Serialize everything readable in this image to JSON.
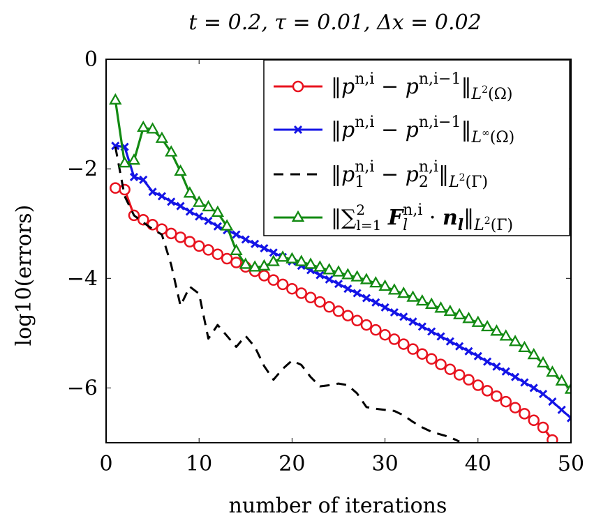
{
  "chart_data": {
    "type": "line",
    "title": "t = 0.2, τ = 0.01, Δx = 0.02",
    "xlabel": "number of iterations",
    "ylabel": "log10(errors)",
    "xlim": [
      0,
      50
    ],
    "ylim": [
      -7,
      0
    ],
    "xticks": [
      "0",
      "10",
      "20",
      "30",
      "40",
      "50"
    ],
    "xtick_values": [
      0,
      10,
      20,
      30,
      40,
      50
    ],
    "yticks": [
      "0",
      "−2",
      "−4",
      "−6"
    ],
    "ytick_values": [
      0,
      -2,
      -4,
      -6
    ],
    "grid": false,
    "legend_position": "top-right",
    "series": [
      {
        "name": "‖p^{n,i} − p^{n,i−1}‖_{L²(Ω)}",
        "color": "#e8131f",
        "marker": "circle",
        "dash": "solid",
        "x": [
          1,
          2,
          3,
          4,
          5,
          6,
          7,
          8,
          9,
          10,
          11,
          12,
          13,
          14,
          15,
          16,
          17,
          18,
          19,
          20,
          21,
          22,
          23,
          24,
          25,
          26,
          27,
          28,
          29,
          30,
          31,
          32,
          33,
          34,
          35,
          36,
          37,
          38,
          39,
          40,
          41,
          42,
          43,
          44,
          45,
          46,
          47,
          48
        ],
        "y": [
          -2.35,
          -2.38,
          -2.85,
          -2.93,
          -3.02,
          -3.1,
          -3.18,
          -3.25,
          -3.33,
          -3.41,
          -3.48,
          -3.56,
          -3.64,
          -3.71,
          -3.79,
          -3.87,
          -3.95,
          -4.03,
          -4.11,
          -4.19,
          -4.27,
          -4.35,
          -4.43,
          -4.52,
          -4.6,
          -4.68,
          -4.77,
          -4.85,
          -4.94,
          -5.03,
          -5.11,
          -5.2,
          -5.29,
          -5.38,
          -5.47,
          -5.57,
          -5.66,
          -5.76,
          -5.85,
          -5.95,
          -6.05,
          -6.15,
          -6.25,
          -6.36,
          -6.47,
          -6.59,
          -6.72,
          -6.95
        ]
      },
      {
        "name": "‖p^{n,i} − p^{n,i−1}‖_{L^∞(Ω)}",
        "color": "#1414e6",
        "marker": "cross",
        "dash": "solid",
        "x": [
          1,
          2,
          3,
          4,
          5,
          6,
          7,
          8,
          9,
          10,
          11,
          12,
          13,
          14,
          15,
          16,
          17,
          18,
          19,
          20,
          21,
          22,
          23,
          24,
          25,
          26,
          27,
          28,
          29,
          30,
          31,
          32,
          33,
          34,
          35,
          36,
          37,
          38,
          39,
          40,
          41,
          42,
          43,
          44,
          45,
          46,
          47,
          48,
          49,
          50
        ],
        "y": [
          -1.58,
          -1.6,
          -2.15,
          -2.2,
          -2.42,
          -2.5,
          -2.6,
          -2.68,
          -2.78,
          -2.87,
          -2.95,
          -3.05,
          -3.12,
          -3.2,
          -3.29,
          -3.37,
          -3.45,
          -3.53,
          -3.61,
          -3.69,
          -3.77,
          -3.85,
          -3.94,
          -4.02,
          -4.1,
          -4.19,
          -4.27,
          -4.36,
          -4.44,
          -4.53,
          -4.62,
          -4.7,
          -4.79,
          -4.88,
          -4.97,
          -5.06,
          -5.15,
          -5.24,
          -5.33,
          -5.42,
          -5.52,
          -5.61,
          -5.7,
          -5.8,
          -5.9,
          -6.0,
          -6.11,
          -6.25,
          -6.4,
          -6.55
        ]
      },
      {
        "name": "‖p₁^{n,i} − p₂^{n,i}‖_{L²(Γ)}",
        "color": "#000000",
        "marker": "none",
        "dash": "dashed",
        "x": [
          1,
          2,
          3,
          4,
          5,
          6,
          7,
          8,
          9,
          10,
          11,
          12,
          13,
          14,
          15,
          16,
          17,
          18,
          19,
          20,
          21,
          22,
          23,
          24,
          25,
          26,
          27,
          28,
          29,
          30,
          31,
          32,
          33,
          34,
          35,
          36,
          37,
          38
        ],
        "y": [
          -1.6,
          -2.5,
          -2.85,
          -2.98,
          -3.1,
          -3.2,
          -3.75,
          -4.5,
          -4.15,
          -4.28,
          -5.1,
          -4.85,
          -5.05,
          -5.25,
          -5.05,
          -5.25,
          -5.6,
          -5.85,
          -5.65,
          -5.5,
          -5.58,
          -5.8,
          -5.97,
          -5.95,
          -5.92,
          -5.95,
          -6.1,
          -6.35,
          -6.38,
          -6.4,
          -6.42,
          -6.5,
          -6.62,
          -6.72,
          -6.8,
          -6.85,
          -6.9,
          -6.98
        ]
      },
      {
        "name": "‖Σ_{l=1}^{2} F_l^{n,i} · n_l‖_{L²(Γ)}",
        "color": "#128a12",
        "marker": "triangle",
        "dash": "solid",
        "x": [
          1,
          2,
          3,
          4,
          5,
          6,
          7,
          8,
          9,
          10,
          11,
          12,
          13,
          14,
          15,
          16,
          17,
          18,
          19,
          20,
          21,
          22,
          23,
          24,
          25,
          26,
          27,
          28,
          29,
          30,
          31,
          32,
          33,
          34,
          35,
          36,
          37,
          38,
          39,
          40,
          41,
          42,
          43,
          44,
          45,
          46,
          47,
          48,
          49,
          50
        ],
        "y": [
          -0.75,
          -1.9,
          -1.85,
          -1.25,
          -1.28,
          -1.45,
          -1.7,
          -2.05,
          -2.45,
          -2.62,
          -2.7,
          -2.8,
          -3.05,
          -3.5,
          -3.75,
          -3.8,
          -3.78,
          -3.7,
          -3.62,
          -3.65,
          -3.7,
          -3.75,
          -3.8,
          -3.85,
          -3.89,
          -3.94,
          -3.98,
          -4.03,
          -4.09,
          -4.15,
          -4.22,
          -4.28,
          -4.35,
          -4.42,
          -4.48,
          -4.55,
          -4.61,
          -4.67,
          -4.74,
          -4.81,
          -4.89,
          -4.97,
          -5.06,
          -5.16,
          -5.27,
          -5.4,
          -5.55,
          -5.72,
          -5.88,
          -6.03
        ]
      }
    ]
  },
  "colors": {
    "red": "#e8131f",
    "blue": "#1414e6",
    "green": "#128a12",
    "black": "#000000"
  }
}
